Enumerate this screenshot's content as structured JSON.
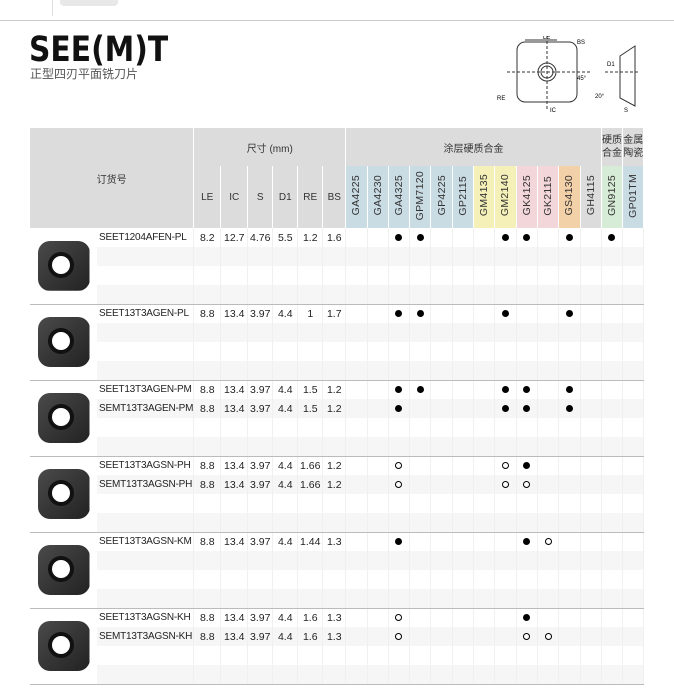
{
  "header": {
    "title": "SEE(M)T",
    "subtitle": "正型四刃平面铣刀片"
  },
  "diagram_labels": {
    "le": "LE",
    "bs": "BS",
    "angle45": "45°",
    "d1": "D1",
    "angle20": "20°",
    "re": "RE",
    "ic": "IC",
    "s": "S"
  },
  "table": {
    "order_header": "订货号",
    "dim_header": "尺寸 (mm)",
    "coated_header": "涂层硬质合金",
    "carbide_header": "硬质合金",
    "cermet_header": "金属陶瓷",
    "dim_columns": [
      "LE",
      "IC",
      "S",
      "D1",
      "RE",
      "BS"
    ],
    "grade_columns": [
      "GA4225",
      "GA4230",
      "GA4325",
      "GPM7120",
      "GP4225",
      "GP2115",
      "GM4135",
      "GM2140",
      "GK4125",
      "GK2115",
      "GS4130",
      "GH4115",
      "GN9125",
      "GP01TM"
    ],
    "grade_colors": [
      "#c9dbe3",
      "#c9dbe3",
      "#c9dbe3",
      "#c9dbe3",
      "#c9dbe3",
      "#c9dbe3",
      "#f5f0b8",
      "#f5f0b8",
      "#f2d6da",
      "#f2d6da",
      "#f2d0a8",
      "#dcdcdc",
      "#d6ecd6",
      "#c9dbe3"
    ],
    "legend": {
      "filled": "●",
      "hollow": "○"
    },
    "groups": [
      {
        "rows": [
          {
            "code": "SEET1204AFEN-PL",
            "dims": [
              "8.2",
              "12.7",
              "4.76",
              "5.5",
              "1.2",
              "1.6"
            ],
            "marks": {
              "GA4325": "●",
              "GPM7120": "●",
              "GM2140": "●",
              "GK4125": "●",
              "GS4130": "●",
              "GN9125": "●"
            }
          }
        ]
      },
      {
        "rows": [
          {
            "code": "SEET13T3AGEN-PL",
            "dims": [
              "8.8",
              "13.4",
              "3.97",
              "4.4",
              "1",
              "1.7"
            ],
            "marks": {
              "GA4325": "●",
              "GPM7120": "●",
              "GM2140": "●",
              "GS4130": "●"
            }
          }
        ]
      },
      {
        "rows": [
          {
            "code": "SEET13T3AGEN-PM",
            "dims": [
              "8.8",
              "13.4",
              "3.97",
              "4.4",
              "1.5",
              "1.2"
            ],
            "marks": {
              "GA4325": "●",
              "GPM7120": "●",
              "GM2140": "●",
              "GK4125": "●",
              "GS4130": "●"
            }
          },
          {
            "code": "SEMT13T3AGEN-PM",
            "dims": [
              "8.8",
              "13.4",
              "3.97",
              "4.4",
              "1.5",
              "1.2"
            ],
            "marks": {
              "GA4325": "●",
              "GM2140": "●",
              "GK4125": "●",
              "GS4130": "●"
            }
          }
        ]
      },
      {
        "rows": [
          {
            "code": "SEET13T3AGSN-PH",
            "dims": [
              "8.8",
              "13.4",
              "3.97",
              "4.4",
              "1.66",
              "1.2"
            ],
            "marks": {
              "GA4325": "○",
              "GM2140": "○",
              "GK4125": "●"
            }
          },
          {
            "code": "SEMT13T3AGSN-PH",
            "dims": [
              "8.8",
              "13.4",
              "3.97",
              "4.4",
              "1.66",
              "1.2"
            ],
            "marks": {
              "GA4325": "○",
              "GM2140": "○",
              "GK4125": "○"
            }
          }
        ]
      },
      {
        "rows": [
          {
            "code": "SEET13T3AGSN-KM",
            "dims": [
              "8.8",
              "13.4",
              "3.97",
              "4.4",
              "1.44",
              "1.3"
            ],
            "marks": {
              "GA4325": "●",
              "GK4125": "●",
              "GK2115": "○"
            }
          }
        ]
      },
      {
        "rows": [
          {
            "code": "SEET13T3AGSN-KH",
            "dims": [
              "8.8",
              "13.4",
              "3.97",
              "4.4",
              "1.6",
              "1.3"
            ],
            "marks": {
              "GA4325": "○",
              "GK4125": "●"
            }
          },
          {
            "code": "SEMT13T3AGSN-KH",
            "dims": [
              "8.8",
              "13.4",
              "3.97",
              "4.4",
              "1.6",
              "1.3"
            ],
            "marks": {
              "GA4325": "○",
              "GK4125": "○",
              "GK2115": "○"
            }
          }
        ]
      }
    ]
  }
}
